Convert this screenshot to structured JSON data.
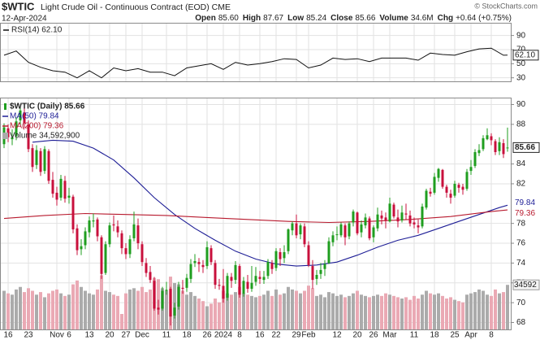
{
  "header": {
    "symbol": "$WTIC",
    "name": "Light Crude Oil - Continuous Contract (EOD) CME",
    "date": "12-Apr-2024",
    "copyright": "© StockCharts.com",
    "quote": [
      {
        "label": "Open",
        "value": "85.60"
      },
      {
        "label": "High",
        "value": "87.67"
      },
      {
        "label": "Low",
        "value": "85.24"
      },
      {
        "label": "Close",
        "value": "85.66"
      },
      {
        "label": "Volume",
        "value": "34.6M"
      },
      {
        "label": "Chg",
        "value": "+0.64 (+0.75%)"
      }
    ]
  },
  "chart_data": [
    {
      "type": "line",
      "legend": "RSI(14) 62.10",
      "last_label": "62.10",
      "color": "#111111",
      "x": [
        0,
        3,
        6,
        9,
        12,
        15,
        18,
        21,
        24,
        27,
        30,
        33,
        36,
        39,
        42,
        45,
        48,
        51,
        54,
        57,
        60,
        63,
        66,
        69,
        72,
        75,
        78,
        81,
        84,
        87,
        90,
        93,
        96,
        99,
        102,
        105,
        108,
        111,
        114,
        117,
        120,
        123,
        124
      ],
      "values": [
        62,
        68,
        52,
        45,
        40,
        38,
        30,
        40,
        30,
        44,
        40,
        43,
        38,
        38,
        33,
        44,
        47,
        50,
        42,
        52,
        48,
        50,
        53,
        57,
        56,
        44,
        48,
        58,
        56,
        57,
        53,
        58,
        58,
        58,
        55,
        65,
        63,
        62,
        67,
        71,
        72,
        62,
        62.1
      ],
      "ylim": [
        25,
        108
      ],
      "yticks": [
        30,
        50,
        70,
        90
      ],
      "grid": true
    },
    {
      "type": "candlestick",
      "legend": "$WTIC (Daily) 85.66",
      "last_label": "85.66",
      "colors": {
        "up": "#1f9e1f",
        "down": "#c8103c",
        "volume_up": "#ababab",
        "volume_down": "#eaa9b4"
      },
      "categories": [
        null,
        "16",
        null,
        null,
        null,
        null,
        "23",
        null,
        null,
        null,
        null,
        null,
        null,
        "Nov",
        null,
        null,
        "6",
        null,
        null,
        null,
        null,
        "13",
        null,
        null,
        null,
        null,
        "20",
        null,
        null,
        null,
        "27",
        null,
        null,
        null,
        "Dec",
        null,
        null,
        null,
        null,
        null,
        "11",
        null,
        null,
        null,
        null,
        "18",
        null,
        null,
        null,
        null,
        "26",
        null,
        null,
        null,
        "2024",
        null,
        null,
        null,
        "8",
        null,
        null,
        null,
        null,
        "16",
        null,
        null,
        null,
        "22",
        null,
        null,
        null,
        null,
        "29",
        null,
        null,
        "Feb",
        null,
        null,
        null,
        null,
        null,
        null,
        "12",
        null,
        null,
        null,
        null,
        "20",
        null,
        null,
        null,
        "26",
        null,
        null,
        null,
        "Mar",
        null,
        null,
        null,
        null,
        null,
        "11",
        null,
        null,
        null,
        null,
        "18",
        null,
        null,
        null,
        null,
        "25",
        null,
        null,
        null,
        "Apr",
        null,
        null,
        null,
        null,
        "8",
        null,
        null,
        null,
        null
      ],
      "open": [
        86.0,
        87.6,
        86.5,
        86.8,
        88.4,
        89.2,
        88.0,
        85.6,
        83.9,
        85.3,
        83.3,
        85.3,
        82.4,
        81.1,
        80.6,
        82.3,
        80.6,
        80.7,
        77.5,
        75.4,
        75.8,
        77.1,
        78.2,
        78.4,
        76.6,
        73.0,
        75.9,
        77.9,
        77.7,
        77.0,
        75.5,
        74.9,
        76.5,
        77.8,
        75.9,
        74.0,
        73.1,
        72.2,
        69.5,
        69.4,
        71.2,
        71.4,
        68.7,
        69.6,
        71.5,
        71.5,
        72.4,
        74.0,
        74.1,
        73.8,
        73.7,
        75.5,
        74.0,
        71.8,
        71.7,
        70.5,
        72.6,
        72.3,
        73.7,
        70.9,
        72.1,
        71.4,
        72.1,
        72.6,
        72.3,
        72.7,
        74.0,
        73.5,
        75.1,
        74.5,
        75.2,
        77.3,
        78.0,
        76.9,
        77.7,
        75.8,
        73.7,
        72.4,
        72.9,
        73.4,
        74.0,
        76.1,
        76.9,
        76.8,
        77.8,
        76.7,
        78.1,
        79.1,
        77.1,
        77.8,
        78.5,
        76.6,
        77.5,
        78.8,
        78.6,
        78.2,
        79.9,
        78.6,
        78.3,
        79.0,
        78.8,
        78.1,
        77.8,
        77.7,
        79.6,
        81.2,
        81.1,
        82.6,
        83.4,
        81.7,
        81.0,
        80.8,
        81.9,
        81.7,
        81.5,
        83.3,
        83.8,
        85.1,
        85.5,
        86.5,
        86.8,
        86.3,
        85.3,
        86.1,
        85.6
      ],
      "high": [
        88.1,
        88.0,
        87.5,
        88.7,
        89.8,
        89.8,
        88.4,
        86.0,
        85.9,
        85.6,
        85.8,
        85.5,
        83.2,
        81.7,
        82.9,
        82.8,
        81.6,
        80.9,
        77.9,
        76.4,
        77.6,
        78.7,
        79.0,
        78.6,
        76.8,
        76.2,
        78.1,
        78.8,
        78.3,
        77.3,
        76.0,
        76.8,
        79.2,
        78.5,
        76.2,
        74.5,
        73.7,
        72.6,
        70.3,
        71.6,
        72.1,
        71.6,
        70.0,
        72.1,
        72.3,
        72.9,
        74.4,
        74.9,
        74.5,
        74.3,
        76.2,
        75.8,
        74.3,
        72.4,
        73.4,
        73.0,
        73.0,
        74.2,
        73.9,
        72.6,
        72.8,
        73.7,
        73.6,
        73.2,
        73.2,
        74.4,
        74.3,
        75.5,
        75.5,
        75.8,
        77.5,
        78.2,
        78.9,
        78.0,
        78.0,
        76.2,
        74.3,
        73.3,
        74.0,
        74.3,
        76.6,
        77.2,
        77.7,
        78.1,
        78.0,
        78.2,
        79.4,
        79.2,
        78.3,
        79.0,
        78.7,
        77.8,
        79.6,
        79.3,
        79.1,
        80.6,
        80.1,
        79.4,
        79.8,
        80.0,
        79.3,
        78.6,
        78.4,
        80.0,
        81.5,
        81.6,
        83.1,
        83.6,
        83.5,
        81.9,
        81.4,
        82.3,
        82.1,
        82.0,
        83.5,
        84.4,
        85.5,
        86.0,
        86.9,
        87.6,
        87.1,
        86.5,
        86.7,
        86.5,
        87.67
      ],
      "low": [
        85.6,
        86.2,
        85.9,
        86.4,
        87.9,
        87.6,
        85.2,
        83.2,
        83.5,
        82.8,
        83.0,
        82.0,
        80.6,
        79.8,
        80.3,
        80.1,
        80.0,
        77.0,
        74.8,
        74.8,
        75.4,
        76.6,
        77.6,
        76.2,
        72.4,
        72.8,
        75.6,
        77.2,
        76.6,
        74.9,
        74.4,
        74.5,
        76.2,
        75.4,
        73.7,
        72.6,
        72.0,
        69.2,
        68.8,
        69.2,
        70.8,
        67.7,
        68.4,
        69.3,
        70.9,
        71.1,
        72.0,
        73.6,
        73.1,
        73.0,
        73.4,
        73.8,
        71.4,
        71.3,
        70.0,
        70.2,
        71.5,
        71.9,
        70.5,
        70.6,
        71.0,
        71.1,
        71.7,
        71.9,
        71.9,
        72.4,
        72.9,
        73.2,
        73.7,
        74.0,
        74.9,
        76.8,
        76.5,
        76.4,
        75.6,
        73.6,
        71.4,
        71.8,
        72.4,
        72.7,
        73.9,
        75.7,
        76.3,
        76.6,
        75.8,
        76.4,
        77.7,
        76.8,
        76.6,
        77.5,
        76.3,
        76.1,
        77.2,
        77.9,
        77.5,
        78.1,
        78.5,
        77.6,
        78.1,
        78.4,
        77.7,
        77.5,
        77.0,
        77.5,
        79.4,
        80.7,
        80.9,
        82.2,
        81.5,
        80.6,
        80.0,
        80.6,
        81.1,
        80.9,
        81.3,
        82.9,
        83.6,
        84.8,
        85.3,
        86.4,
        85.9,
        84.9,
        84.9,
        84.6,
        85.24
      ],
      "close": [
        87.7,
        86.7,
        86.7,
        88.3,
        89.4,
        88.1,
        85.5,
        83.7,
        85.4,
        83.2,
        85.5,
        82.3,
        81.0,
        80.4,
        82.5,
        80.5,
        80.8,
        77.4,
        75.3,
        75.7,
        77.2,
        78.3,
        78.3,
        76.7,
        72.9,
        75.9,
        77.8,
        77.8,
        77.1,
        75.5,
        74.9,
        76.4,
        77.9,
        76.0,
        74.1,
        73.0,
        72.3,
        69.4,
        69.3,
        71.2,
        71.3,
        68.6,
        69.5,
        71.6,
        71.4,
        72.5,
        73.9,
        74.2,
        73.9,
        73.6,
        75.6,
        74.1,
        71.8,
        71.7,
        70.4,
        72.7,
        72.2,
        73.8,
        70.8,
        72.2,
        71.4,
        72.0,
        72.7,
        72.4,
        72.6,
        74.1,
        73.4,
        75.2,
        74.4,
        75.1,
        77.4,
        78.0,
        76.8,
        77.8,
        75.9,
        73.8,
        72.3,
        72.8,
        73.3,
        73.9,
        76.2,
        76.8,
        76.9,
        77.9,
        76.6,
        78.0,
        79.2,
        77.0,
        77.9,
        78.6,
        76.5,
        77.6,
        78.9,
        78.5,
        78.3,
        80.0,
        78.7,
        78.2,
        79.1,
        78.9,
        78.0,
        77.9,
        77.6,
        79.7,
        81.3,
        81.0,
        82.7,
        83.5,
        81.7,
        81.1,
        80.6,
        82.0,
        81.6,
        81.4,
        83.2,
        83.7,
        85.2,
        85.4,
        86.6,
        86.9,
        86.4,
        85.2,
        86.2,
        85.0,
        85.66
      ],
      "volume": [
        30000000,
        28000000,
        27000000,
        31000000,
        33000000,
        29000000,
        32000000,
        30000000,
        27000000,
        29000000,
        25000000,
        28000000,
        30000000,
        31000000,
        28000000,
        26000000,
        27000000,
        35000000,
        38000000,
        33000000,
        30000000,
        28000000,
        27000000,
        31000000,
        42000000,
        30000000,
        29000000,
        27000000,
        26000000,
        12000000,
        28000000,
        31000000,
        32000000,
        30000000,
        33000000,
        29000000,
        31000000,
        40000000,
        39000000,
        32000000,
        30000000,
        41000000,
        36000000,
        35000000,
        30000000,
        27000000,
        29000000,
        26000000,
        24000000,
        22000000,
        18000000,
        20000000,
        24000000,
        21000000,
        30000000,
        28000000,
        27000000,
        29000000,
        33000000,
        28000000,
        27000000,
        26000000,
        25000000,
        26000000,
        27000000,
        30000000,
        26000000,
        31000000,
        27000000,
        28000000,
        33000000,
        31000000,
        30000000,
        28000000,
        30000000,
        34000000,
        32000000,
        26000000,
        27000000,
        25000000,
        29000000,
        28000000,
        26000000,
        27000000,
        25000000,
        26000000,
        28000000,
        30000000,
        27000000,
        26000000,
        25000000,
        26000000,
        27000000,
        26000000,
        28000000,
        27000000,
        26000000,
        25000000,
        24000000,
        25000000,
        23000000,
        26000000,
        24000000,
        27000000,
        30000000,
        28000000,
        27000000,
        28000000,
        26000000,
        24000000,
        25000000,
        23000000,
        22000000,
        21000000,
        27000000,
        28000000,
        29000000,
        31000000,
        30000000,
        27000000,
        26000000,
        31000000,
        28000000,
        29000000,
        34592900
      ],
      "volume_legend": "Volume 34,592,900",
      "volume_label": "34592",
      "ylim": [
        67.3,
        90.7
      ],
      "yticks": [
        68,
        70,
        72,
        74,
        76,
        78,
        82,
        84,
        88,
        90
      ],
      "y2lim": [
        0,
        180000000
      ],
      "grid": true,
      "series": [
        {
          "name": "MA(50) 79.84",
          "color": "#1e1e96",
          "last_label": "79.84",
          "x": [
            7,
            12,
            17,
            22,
            27,
            32,
            37,
            42,
            47,
            52,
            57,
            62,
            67,
            72,
            77,
            82,
            87,
            92,
            97,
            102,
            107,
            112,
            117,
            122,
            124
          ],
          "values": [
            86.2,
            86.4,
            86.3,
            85.6,
            84.4,
            82.6,
            80.6,
            78.9,
            77.5,
            76.3,
            75.2,
            74.4,
            73.9,
            73.7,
            73.8,
            74.1,
            74.8,
            75.6,
            76.3,
            76.8,
            77.5,
            78.2,
            78.9,
            79.6,
            79.84
          ]
        },
        {
          "name": "MA(200) 79.36",
          "color": "#b81a2e",
          "last_label": "79.36",
          "x": [
            0,
            10,
            20,
            30,
            40,
            50,
            60,
            70,
            80,
            90,
            100,
            110,
            120,
            124
          ],
          "values": [
            78.5,
            78.8,
            79.0,
            78.9,
            78.8,
            78.6,
            78.4,
            78.2,
            78.1,
            78.2,
            78.4,
            78.7,
            79.2,
            79.36
          ]
        }
      ]
    }
  ]
}
